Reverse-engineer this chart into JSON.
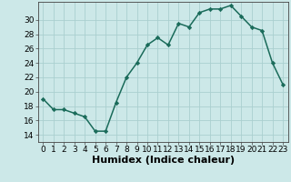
{
  "x": [
    0,
    1,
    2,
    3,
    4,
    5,
    6,
    7,
    8,
    9,
    10,
    11,
    12,
    13,
    14,
    15,
    16,
    17,
    18,
    19,
    20,
    21,
    22,
    23
  ],
  "y": [
    19.0,
    17.5,
    17.5,
    17.0,
    16.5,
    14.5,
    14.5,
    18.5,
    22.0,
    24.0,
    26.5,
    27.5,
    26.5,
    29.5,
    29.0,
    31.0,
    31.5,
    31.5,
    32.0,
    30.5,
    29.0,
    28.5,
    24.0,
    21.0
  ],
  "line_color": "#1a6b5a",
  "marker": "D",
  "marker_size": 2.2,
  "bg_color": "#cce8e8",
  "grid_color": "#aacfcf",
  "xlabel": "Humidex (Indice chaleur)",
  "xlim": [
    -0.5,
    23.5
  ],
  "ylim": [
    13.0,
    32.5
  ],
  "yticks": [
    14,
    16,
    18,
    20,
    22,
    24,
    26,
    28,
    30
  ],
  "xticks": [
    0,
    1,
    2,
    3,
    4,
    5,
    6,
    7,
    8,
    9,
    10,
    11,
    12,
    13,
    14,
    15,
    16,
    17,
    18,
    19,
    20,
    21,
    22,
    23
  ],
  "tick_label_fontsize": 6.5,
  "xlabel_fontsize": 8,
  "line_width": 1.1
}
